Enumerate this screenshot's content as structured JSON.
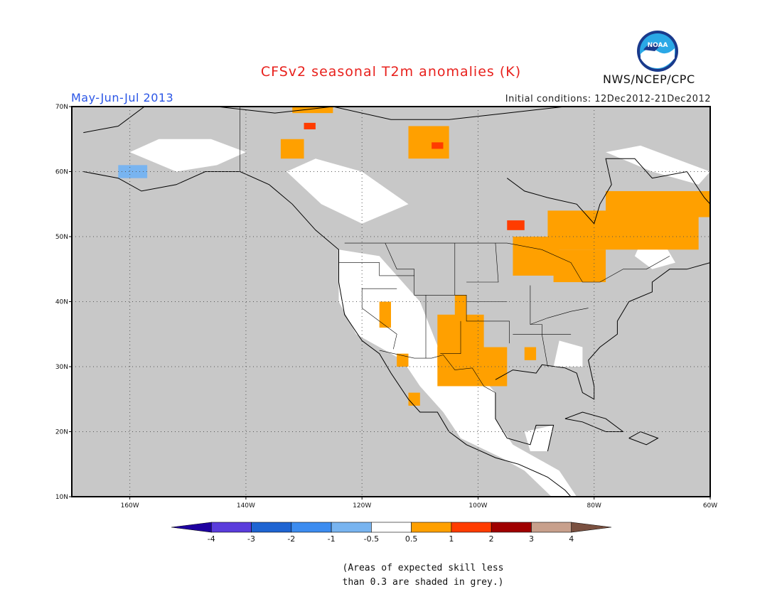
{
  "header": {
    "title": "CFSv2 seasonal T2m anomalies (K)",
    "season": "May-Jun-Jul 2013",
    "initial_conditions": "Initial conditions: 12Dec2012-21Dec2012",
    "agency": "NWS/NCEP/CPC",
    "logo_text": "NOAA"
  },
  "map": {
    "lon_range": [
      -170,
      -60
    ],
    "lat_range": [
      10,
      70
    ],
    "lon_ticks": [
      {
        "value": -160,
        "label": "160W"
      },
      {
        "value": -140,
        "label": "140W"
      },
      {
        "value": -120,
        "label": "120W"
      },
      {
        "value": -100,
        "label": "100W"
      },
      {
        "value": -80,
        "label": "80W"
      },
      {
        "value": -60,
        "label": "60W"
      }
    ],
    "lat_ticks": [
      {
        "value": 10,
        "label": "10N"
      },
      {
        "value": 20,
        "label": "20N"
      },
      {
        "value": 30,
        "label": "30N"
      },
      {
        "value": 40,
        "label": "40N"
      },
      {
        "value": 50,
        "label": "50N"
      },
      {
        "value": 60,
        "label": "60N"
      },
      {
        "value": 70,
        "label": "70N"
      }
    ],
    "background_color": "#c8c8c8",
    "land_no_signal_color": "#ffffff",
    "anomaly_regions": [
      {
        "category": "0.5 to 1",
        "color": "#ffa000",
        "lon": [
          -107,
          -99
        ],
        "lat": [
          30,
          38
        ]
      },
      {
        "category": "0.5 to 1",
        "color": "#ffa000",
        "lon": [
          -107,
          -95
        ],
        "lat": [
          27,
          33
        ]
      },
      {
        "category": "0.5 to 1",
        "color": "#ffa000",
        "lon": [
          -104,
          -102
        ],
        "lat": [
          37,
          41
        ]
      },
      {
        "category": "0.5 to 1",
        "color": "#ffa000",
        "lon": [
          -88,
          -62
        ],
        "lat": [
          48,
          54
        ]
      },
      {
        "category": "0.5 to 1",
        "color": "#ffa000",
        "lon": [
          -78,
          -60
        ],
        "lat": [
          53,
          57
        ]
      },
      {
        "category": "0.5 to 1",
        "color": "#ffa000",
        "lon": [
          -94,
          -86
        ],
        "lat": [
          44,
          50
        ]
      },
      {
        "category": "0.5 to 1",
        "color": "#ffa000",
        "lon": [
          -87,
          -78
        ],
        "lat": [
          43,
          48
        ]
      },
      {
        "category": "0.5 to 1",
        "color": "#ffa000",
        "lon": [
          -134,
          -130
        ],
        "lat": [
          62,
          65
        ]
      },
      {
        "category": "0.5 to 1",
        "color": "#ffa000",
        "lon": [
          -112,
          -105
        ],
        "lat": [
          62,
          67
        ]
      },
      {
        "category": "0.5 to 1",
        "color": "#ffa000",
        "lon": [
          -132,
          -125
        ],
        "lat": [
          69,
          70
        ]
      },
      {
        "category": "0.5 to 1",
        "color": "#ffa000",
        "lon": [
          -117,
          -115
        ],
        "lat": [
          36,
          40
        ]
      },
      {
        "category": "0.5 to 1",
        "color": "#ffa000",
        "lon": [
          -112,
          -110
        ],
        "lat": [
          24,
          26
        ]
      },
      {
        "category": "0.5 to 1",
        "color": "#ffa000",
        "lon": [
          -114,
          -112
        ],
        "lat": [
          30,
          32
        ]
      },
      {
        "category": "0.5 to 1",
        "color": "#ffa000",
        "lon": [
          -92,
          -90
        ],
        "lat": [
          31,
          33
        ]
      },
      {
        "category": "1 to 2",
        "color": "#ff3c00",
        "lon": [
          -95,
          -92
        ],
        "lat": [
          51,
          52.5
        ]
      },
      {
        "category": "1 to 2",
        "color": "#ff3c00",
        "lon": [
          -130,
          -128
        ],
        "lat": [
          66.5,
          67.5
        ]
      },
      {
        "category": "1 to 2",
        "color": "#ff3c00",
        "lon": [
          -108,
          -106
        ],
        "lat": [
          63.5,
          64.5
        ]
      },
      {
        "category": "-1 to -0.5",
        "color": "#78b4f0",
        "lon": [
          -162,
          -157
        ],
        "lat": [
          59,
          61
        ]
      }
    ]
  },
  "colorbar": {
    "bins": [
      {
        "from": "-inf",
        "to": -4,
        "color": "#1e00a0"
      },
      {
        "from": -4,
        "to": -3,
        "color": "#5a3cdc"
      },
      {
        "from": -3,
        "to": -2,
        "color": "#1e64d2"
      },
      {
        "from": -2,
        "to": -1,
        "color": "#3c8cf0"
      },
      {
        "from": -1,
        "to": -0.5,
        "color": "#78b4f0"
      },
      {
        "from": -0.5,
        "to": 0.5,
        "color": "#ffffff"
      },
      {
        "from": 0.5,
        "to": 1,
        "color": "#ffa000"
      },
      {
        "from": 1,
        "to": 2,
        "color": "#ff3c00"
      },
      {
        "from": 2,
        "to": 3,
        "color": "#a00000"
      },
      {
        "from": 3,
        "to": 4,
        "color": "#c8a08c"
      },
      {
        "from": 4,
        "to": "inf",
        "color": "#7a5040"
      }
    ],
    "labels": [
      "-4",
      "-3",
      "-2",
      "-1",
      "-0.5",
      "0.5",
      "1",
      "2",
      "3",
      "4"
    ]
  },
  "footnote": {
    "line1": "(Areas of expected skill less",
    "line2": "than 0.3 are shaded in grey.)"
  }
}
